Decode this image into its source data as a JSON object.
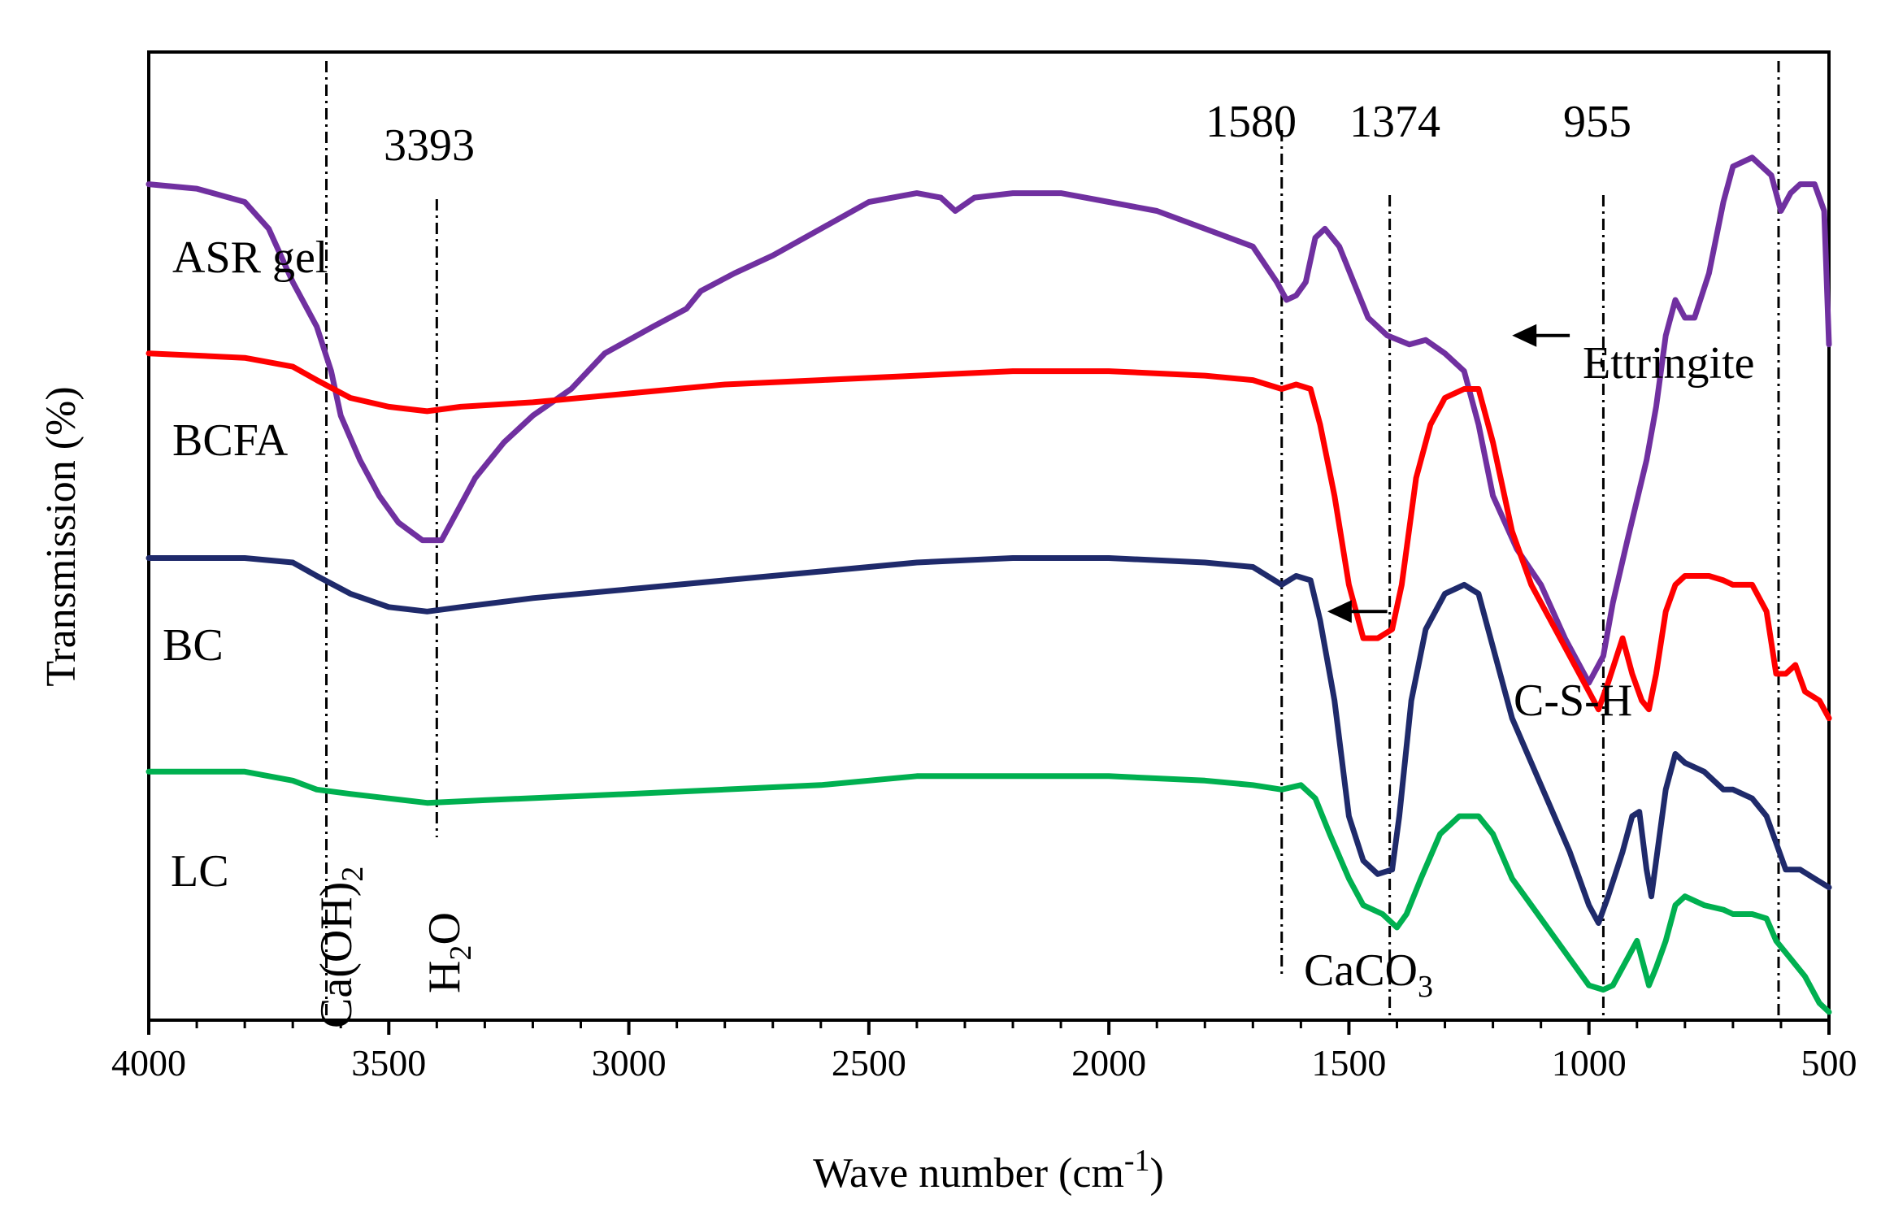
{
  "chart_data": {
    "type": "line",
    "title": "",
    "xlabel": "Wave number (cm-1)",
    "xlabel_parts": {
      "main": "Wave number (cm",
      "sup": "-1",
      "close": ")"
    },
    "ylabel": "Transmission (%)",
    "xlim": [
      4000,
      500
    ],
    "ylim": [
      0,
      100
    ],
    "x_reversed": true,
    "y_ticks_shown": false,
    "x_ticks": [
      "4000",
      "3500",
      "3000",
      "2500",
      "2000",
      "1500",
      "1000",
      "500"
    ],
    "x_tick_values": [
      4000,
      3500,
      3000,
      2500,
      2000,
      1500,
      1000,
      500
    ],
    "series": [
      {
        "name": "ASR gel",
        "color": "#7030a0",
        "points": [
          [
            4000,
            93
          ],
          [
            3900,
            92.5
          ],
          [
            3800,
            91
          ],
          [
            3750,
            88
          ],
          [
            3700,
            82
          ],
          [
            3650,
            77
          ],
          [
            3620,
            72
          ],
          [
            3600,
            67
          ],
          [
            3560,
            62
          ],
          [
            3520,
            58
          ],
          [
            3480,
            55
          ],
          [
            3430,
            53
          ],
          [
            3390,
            53
          ],
          [
            3360,
            56
          ],
          [
            3320,
            60
          ],
          [
            3260,
            64
          ],
          [
            3200,
            67
          ],
          [
            3120,
            70
          ],
          [
            3050,
            74
          ],
          [
            2950,
            77
          ],
          [
            2880,
            79
          ],
          [
            2850,
            81
          ],
          [
            2780,
            83
          ],
          [
            2700,
            85
          ],
          [
            2600,
            88
          ],
          [
            2500,
            91
          ],
          [
            2400,
            92
          ],
          [
            2350,
            91.5
          ],
          [
            2320,
            90
          ],
          [
            2280,
            91.5
          ],
          [
            2200,
            92
          ],
          [
            2100,
            92
          ],
          [
            2000,
            91
          ],
          [
            1900,
            90
          ],
          [
            1800,
            88
          ],
          [
            1700,
            86
          ],
          [
            1650,
            82
          ],
          [
            1630,
            80
          ],
          [
            1610,
            80.5
          ],
          [
            1590,
            82
          ],
          [
            1570,
            87
          ],
          [
            1550,
            88
          ],
          [
            1520,
            86
          ],
          [
            1490,
            82
          ],
          [
            1460,
            78
          ],
          [
            1420,
            76
          ],
          [
            1374,
            75
          ],
          [
            1340,
            75.5
          ],
          [
            1300,
            74
          ],
          [
            1260,
            72
          ],
          [
            1230,
            66
          ],
          [
            1200,
            58
          ],
          [
            1150,
            52
          ],
          [
            1100,
            48
          ],
          [
            1050,
            42
          ],
          [
            1000,
            37
          ],
          [
            970,
            40
          ],
          [
            950,
            46
          ],
          [
            920,
            53
          ],
          [
            880,
            62
          ],
          [
            860,
            68
          ],
          [
            840,
            76
          ],
          [
            820,
            80
          ],
          [
            800,
            78
          ],
          [
            780,
            78
          ],
          [
            750,
            83
          ],
          [
            720,
            91
          ],
          [
            700,
            95
          ],
          [
            660,
            96
          ],
          [
            620,
            94
          ],
          [
            600,
            90
          ],
          [
            580,
            92
          ],
          [
            560,
            93
          ],
          [
            530,
            93
          ],
          [
            510,
            90
          ],
          [
            500,
            75
          ]
        ]
      },
      {
        "name": "BCFA",
        "color": "#ff0000",
        "points": [
          [
            4000,
            74
          ],
          [
            3800,
            73.5
          ],
          [
            3700,
            72.5
          ],
          [
            3650,
            71
          ],
          [
            3580,
            69
          ],
          [
            3500,
            68
          ],
          [
            3420,
            67.5
          ],
          [
            3350,
            68
          ],
          [
            3200,
            68.5
          ],
          [
            3000,
            69.5
          ],
          [
            2800,
            70.5
          ],
          [
            2600,
            71
          ],
          [
            2400,
            71.5
          ],
          [
            2200,
            72
          ],
          [
            2000,
            72
          ],
          [
            1800,
            71.5
          ],
          [
            1700,
            71
          ],
          [
            1640,
            70
          ],
          [
            1610,
            70.5
          ],
          [
            1580,
            70
          ],
          [
            1560,
            66
          ],
          [
            1530,
            58
          ],
          [
            1500,
            48
          ],
          [
            1470,
            42
          ],
          [
            1440,
            42
          ],
          [
            1410,
            43
          ],
          [
            1390,
            48
          ],
          [
            1360,
            60
          ],
          [
            1330,
            66
          ],
          [
            1300,
            69
          ],
          [
            1260,
            70
          ],
          [
            1230,
            70
          ],
          [
            1200,
            64
          ],
          [
            1160,
            54
          ],
          [
            1120,
            48
          ],
          [
            1080,
            44
          ],
          [
            1040,
            40
          ],
          [
            1000,
            36
          ],
          [
            980,
            34
          ],
          [
            960,
            37
          ],
          [
            930,
            42
          ],
          [
            910,
            38
          ],
          [
            890,
            35
          ],
          [
            875,
            34
          ],
          [
            860,
            38
          ],
          [
            840,
            45
          ],
          [
            820,
            48
          ],
          [
            800,
            49
          ],
          [
            750,
            49
          ],
          [
            720,
            48.5
          ],
          [
            700,
            48
          ],
          [
            660,
            48
          ],
          [
            630,
            45
          ],
          [
            610,
            38
          ],
          [
            590,
            38
          ],
          [
            570,
            39
          ],
          [
            550,
            36
          ],
          [
            520,
            35
          ],
          [
            500,
            33
          ]
        ]
      },
      {
        "name": "BC",
        "color": "#1f2a6b",
        "points": [
          [
            4000,
            51
          ],
          [
            3800,
            51
          ],
          [
            3700,
            50.5
          ],
          [
            3650,
            49
          ],
          [
            3580,
            47
          ],
          [
            3500,
            45.5
          ],
          [
            3420,
            45
          ],
          [
            3350,
            45.5
          ],
          [
            3200,
            46.5
          ],
          [
            3000,
            47.5
          ],
          [
            2800,
            48.5
          ],
          [
            2600,
            49.5
          ],
          [
            2400,
            50.5
          ],
          [
            2200,
            51
          ],
          [
            2000,
            51
          ],
          [
            1800,
            50.5
          ],
          [
            1700,
            50
          ],
          [
            1640,
            48
          ],
          [
            1610,
            49
          ],
          [
            1580,
            48.5
          ],
          [
            1560,
            44
          ],
          [
            1530,
            35
          ],
          [
            1500,
            22
          ],
          [
            1470,
            17
          ],
          [
            1440,
            15.5
          ],
          [
            1410,
            16
          ],
          [
            1395,
            22
          ],
          [
            1370,
            35
          ],
          [
            1340,
            43
          ],
          [
            1300,
            47
          ],
          [
            1260,
            48
          ],
          [
            1230,
            47
          ],
          [
            1200,
            41
          ],
          [
            1160,
            33
          ],
          [
            1120,
            28
          ],
          [
            1080,
            23
          ],
          [
            1040,
            18
          ],
          [
            1000,
            12
          ],
          [
            980,
            10
          ],
          [
            960,
            13
          ],
          [
            930,
            18
          ],
          [
            910,
            22
          ],
          [
            895,
            22.5
          ],
          [
            880,
            16
          ],
          [
            870,
            13
          ],
          [
            860,
            17
          ],
          [
            840,
            25
          ],
          [
            820,
            29
          ],
          [
            800,
            28
          ],
          [
            760,
            27
          ],
          [
            720,
            25
          ],
          [
            700,
            25
          ],
          [
            660,
            24
          ],
          [
            630,
            22
          ],
          [
            610,
            19
          ],
          [
            590,
            16
          ],
          [
            560,
            16
          ],
          [
            530,
            15
          ],
          [
            500,
            14
          ]
        ]
      },
      {
        "name": "LC",
        "color": "#00b050",
        "points": [
          [
            4000,
            27
          ],
          [
            3800,
            27
          ],
          [
            3700,
            26
          ],
          [
            3650,
            25
          ],
          [
            3580,
            24.5
          ],
          [
            3500,
            24
          ],
          [
            3420,
            23.5
          ],
          [
            3300,
            23.8
          ],
          [
            3000,
            24.5
          ],
          [
            2800,
            25
          ],
          [
            2600,
            25.5
          ],
          [
            2400,
            26.5
          ],
          [
            2200,
            26.5
          ],
          [
            2000,
            26.5
          ],
          [
            1800,
            26
          ],
          [
            1700,
            25.5
          ],
          [
            1640,
            25
          ],
          [
            1600,
            25.5
          ],
          [
            1570,
            24
          ],
          [
            1540,
            20
          ],
          [
            1500,
            15
          ],
          [
            1470,
            12
          ],
          [
            1430,
            11
          ],
          [
            1400,
            9.5
          ],
          [
            1380,
            11
          ],
          [
            1350,
            15
          ],
          [
            1310,
            20
          ],
          [
            1270,
            22
          ],
          [
            1230,
            22
          ],
          [
            1200,
            20
          ],
          [
            1160,
            15
          ],
          [
            1120,
            12
          ],
          [
            1080,
            9
          ],
          [
            1040,
            6
          ],
          [
            1000,
            3
          ],
          [
            970,
            2.5
          ],
          [
            950,
            3
          ],
          [
            920,
            6
          ],
          [
            900,
            8
          ],
          [
            890,
            6
          ],
          [
            875,
            3
          ],
          [
            860,
            5
          ],
          [
            840,
            8
          ],
          [
            820,
            12
          ],
          [
            800,
            13
          ],
          [
            760,
            12
          ],
          [
            720,
            11.5
          ],
          [
            700,
            11
          ],
          [
            660,
            11
          ],
          [
            630,
            10.5
          ],
          [
            610,
            8
          ],
          [
            580,
            6
          ],
          [
            550,
            4
          ],
          [
            520,
            1
          ],
          [
            500,
            0
          ]
        ]
      }
    ],
    "vlines": [
      3630,
      3400,
      1640,
      1415,
      970,
      605
    ],
    "annotations": {
      "peak_3393": "3393",
      "peak_1580": "1580",
      "peak_1374": "1374",
      "peak_955": "955",
      "ettringite": "Ettringite",
      "csh": "C-S-H",
      "caoh2": "Ca(OH)2",
      "caoh2_main": "Ca(OH)",
      "caoh2_sub": "2",
      "h2o": "H2O",
      "h2o_h": "H",
      "h2o_sub": "2",
      "h2o_o": "O",
      "caco3": "CaCO3",
      "caco3_main": "CaCO",
      "caco3_sub": "3"
    },
    "arrows": [
      {
        "x_from": 1040,
        "x_to": 1160,
        "y": 76
      },
      {
        "x_from": 1420,
        "x_to": 1545,
        "y": 45
      }
    ]
  }
}
